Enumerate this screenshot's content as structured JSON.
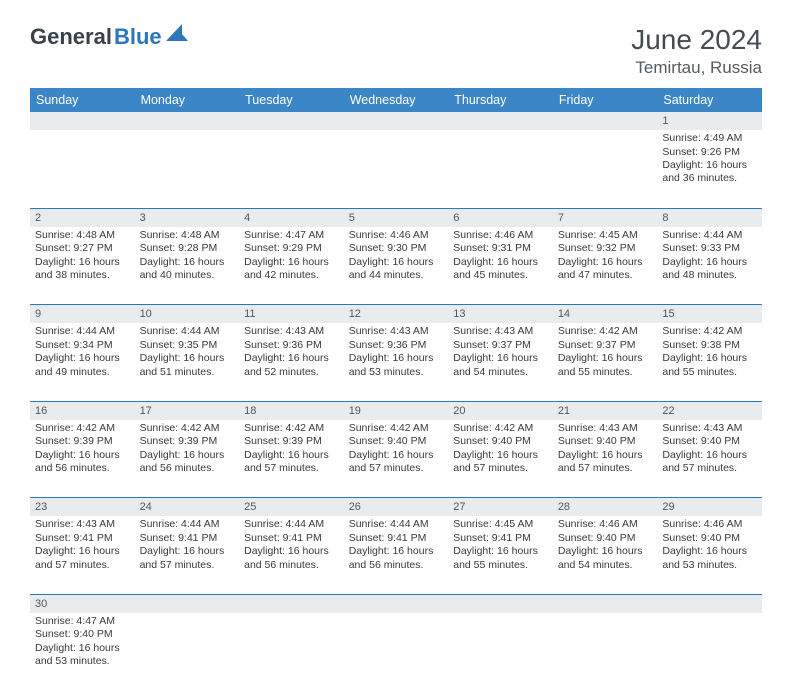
{
  "logo": {
    "text1": "General",
    "text2": "Blue"
  },
  "title": "June 2024",
  "location": "Temirtau, Russia",
  "columns": [
    "Sunday",
    "Monday",
    "Tuesday",
    "Wednesday",
    "Thursday",
    "Friday",
    "Saturday"
  ],
  "colors": {
    "header_bg": "#3b86c6",
    "header_fg": "#ffffff",
    "daynum_bg": "#e9ecef",
    "rule": "#2c77ba",
    "logo_dark": "#39424a",
    "logo_blue": "#2c77ba"
  },
  "weeks": [
    [
      null,
      null,
      null,
      null,
      null,
      null,
      {
        "n": "1",
        "sr": "Sunrise: 4:49 AM",
        "ss": "Sunset: 9:26 PM",
        "dl": "Daylight: 16 hours and 36 minutes."
      }
    ],
    [
      {
        "n": "2",
        "sr": "Sunrise: 4:48 AM",
        "ss": "Sunset: 9:27 PM",
        "dl": "Daylight: 16 hours and 38 minutes."
      },
      {
        "n": "3",
        "sr": "Sunrise: 4:48 AM",
        "ss": "Sunset: 9:28 PM",
        "dl": "Daylight: 16 hours and 40 minutes."
      },
      {
        "n": "4",
        "sr": "Sunrise: 4:47 AM",
        "ss": "Sunset: 9:29 PM",
        "dl": "Daylight: 16 hours and 42 minutes."
      },
      {
        "n": "5",
        "sr": "Sunrise: 4:46 AM",
        "ss": "Sunset: 9:30 PM",
        "dl": "Daylight: 16 hours and 44 minutes."
      },
      {
        "n": "6",
        "sr": "Sunrise: 4:46 AM",
        "ss": "Sunset: 9:31 PM",
        "dl": "Daylight: 16 hours and 45 minutes."
      },
      {
        "n": "7",
        "sr": "Sunrise: 4:45 AM",
        "ss": "Sunset: 9:32 PM",
        "dl": "Daylight: 16 hours and 47 minutes."
      },
      {
        "n": "8",
        "sr": "Sunrise: 4:44 AM",
        "ss": "Sunset: 9:33 PM",
        "dl": "Daylight: 16 hours and 48 minutes."
      }
    ],
    [
      {
        "n": "9",
        "sr": "Sunrise: 4:44 AM",
        "ss": "Sunset: 9:34 PM",
        "dl": "Daylight: 16 hours and 49 minutes."
      },
      {
        "n": "10",
        "sr": "Sunrise: 4:44 AM",
        "ss": "Sunset: 9:35 PM",
        "dl": "Daylight: 16 hours and 51 minutes."
      },
      {
        "n": "11",
        "sr": "Sunrise: 4:43 AM",
        "ss": "Sunset: 9:36 PM",
        "dl": "Daylight: 16 hours and 52 minutes."
      },
      {
        "n": "12",
        "sr": "Sunrise: 4:43 AM",
        "ss": "Sunset: 9:36 PM",
        "dl": "Daylight: 16 hours and 53 minutes."
      },
      {
        "n": "13",
        "sr": "Sunrise: 4:43 AM",
        "ss": "Sunset: 9:37 PM",
        "dl": "Daylight: 16 hours and 54 minutes."
      },
      {
        "n": "14",
        "sr": "Sunrise: 4:42 AM",
        "ss": "Sunset: 9:37 PM",
        "dl": "Daylight: 16 hours and 55 minutes."
      },
      {
        "n": "15",
        "sr": "Sunrise: 4:42 AM",
        "ss": "Sunset: 9:38 PM",
        "dl": "Daylight: 16 hours and 55 minutes."
      }
    ],
    [
      {
        "n": "16",
        "sr": "Sunrise: 4:42 AM",
        "ss": "Sunset: 9:39 PM",
        "dl": "Daylight: 16 hours and 56 minutes."
      },
      {
        "n": "17",
        "sr": "Sunrise: 4:42 AM",
        "ss": "Sunset: 9:39 PM",
        "dl": "Daylight: 16 hours and 56 minutes."
      },
      {
        "n": "18",
        "sr": "Sunrise: 4:42 AM",
        "ss": "Sunset: 9:39 PM",
        "dl": "Daylight: 16 hours and 57 minutes."
      },
      {
        "n": "19",
        "sr": "Sunrise: 4:42 AM",
        "ss": "Sunset: 9:40 PM",
        "dl": "Daylight: 16 hours and 57 minutes."
      },
      {
        "n": "20",
        "sr": "Sunrise: 4:42 AM",
        "ss": "Sunset: 9:40 PM",
        "dl": "Daylight: 16 hours and 57 minutes."
      },
      {
        "n": "21",
        "sr": "Sunrise: 4:43 AM",
        "ss": "Sunset: 9:40 PM",
        "dl": "Daylight: 16 hours and 57 minutes."
      },
      {
        "n": "22",
        "sr": "Sunrise: 4:43 AM",
        "ss": "Sunset: 9:40 PM",
        "dl": "Daylight: 16 hours and 57 minutes."
      }
    ],
    [
      {
        "n": "23",
        "sr": "Sunrise: 4:43 AM",
        "ss": "Sunset: 9:41 PM",
        "dl": "Daylight: 16 hours and 57 minutes."
      },
      {
        "n": "24",
        "sr": "Sunrise: 4:44 AM",
        "ss": "Sunset: 9:41 PM",
        "dl": "Daylight: 16 hours and 57 minutes."
      },
      {
        "n": "25",
        "sr": "Sunrise: 4:44 AM",
        "ss": "Sunset: 9:41 PM",
        "dl": "Daylight: 16 hours and 56 minutes."
      },
      {
        "n": "26",
        "sr": "Sunrise: 4:44 AM",
        "ss": "Sunset: 9:41 PM",
        "dl": "Daylight: 16 hours and 56 minutes."
      },
      {
        "n": "27",
        "sr": "Sunrise: 4:45 AM",
        "ss": "Sunset: 9:41 PM",
        "dl": "Daylight: 16 hours and 55 minutes."
      },
      {
        "n": "28",
        "sr": "Sunrise: 4:46 AM",
        "ss": "Sunset: 9:40 PM",
        "dl": "Daylight: 16 hours and 54 minutes."
      },
      {
        "n": "29",
        "sr": "Sunrise: 4:46 AM",
        "ss": "Sunset: 9:40 PM",
        "dl": "Daylight: 16 hours and 53 minutes."
      }
    ],
    [
      {
        "n": "30",
        "sr": "Sunrise: 4:47 AM",
        "ss": "Sunset: 9:40 PM",
        "dl": "Daylight: 16 hours and 53 minutes."
      },
      null,
      null,
      null,
      null,
      null,
      null
    ]
  ]
}
